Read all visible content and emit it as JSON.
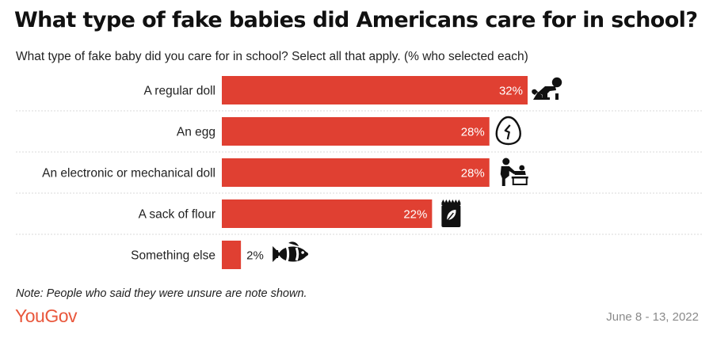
{
  "header": {
    "title": "What type of fake babies did Americans care for in school?",
    "subtitle": "What type of fake baby did you care for in school? Select all that apply. (% who selected each)"
  },
  "footer": {
    "note": "Note: People who said they were unsure are note shown.",
    "brand": "YouGov",
    "date": "June 8 - 13, 2022"
  },
  "colors": {
    "bar": "#e04032",
    "brand": "#e9573c",
    "gridline": "#d9d9d9"
  },
  "chart_data": {
    "type": "bar",
    "orientation": "horizontal",
    "title": "What type of fake babies did Americans care for in school?",
    "subtitle": "What type of fake baby did you care for in school? Select all that apply. (% who selected each)",
    "categories": [
      "A regular doll",
      "An egg",
      "An electronic or mechanical doll",
      "A sack of flour",
      "Something else"
    ],
    "values": [
      32,
      28,
      28,
      22,
      2
    ],
    "value_labels": [
      "32%",
      "28%",
      "28%",
      "22%",
      "2%"
    ],
    "icons": [
      "crawling-baby-icon",
      "cracked-egg-icon",
      "diaper-changing-icon",
      "flour-sack-icon",
      "clownfish-icon"
    ],
    "xlim": [
      0,
      32
    ],
    "grid": false,
    "legend": "none"
  }
}
